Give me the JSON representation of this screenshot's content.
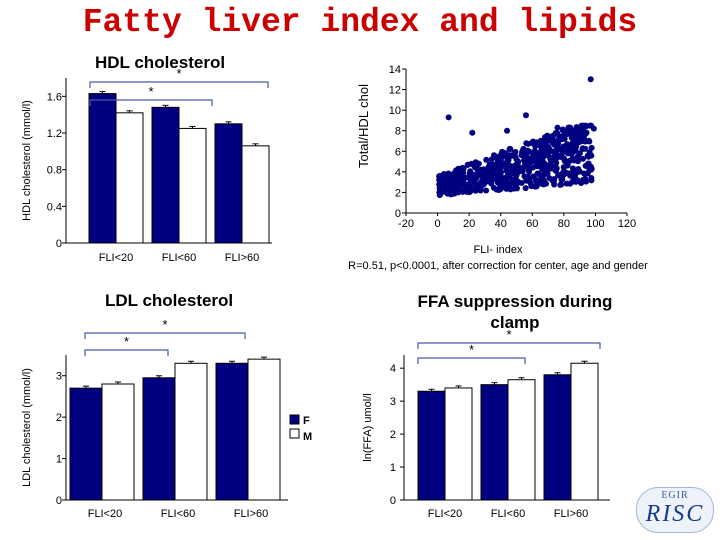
{
  "page_title": "Fatty liver index and lipids",
  "logo": {
    "line1": "EGIR",
    "line2": "RISC"
  },
  "legend": {
    "female": "F",
    "male": "M"
  },
  "chart_data": [
    {
      "id": "hdl",
      "type": "bar",
      "title": "HDL cholesterol",
      "ylabel": "HDL cholesterol (mmol/l)",
      "xlabel": "",
      "ylim": [
        0,
        1.8
      ],
      "yticks": [
        "0",
        "0.4",
        "0.8",
        "1.2",
        "1.6"
      ],
      "categories": [
        "FLI<20",
        "FLI<60",
        "FLI>60"
      ],
      "series": [
        {
          "name": "F",
          "color": "#000080",
          "values": [
            1.63,
            1.48,
            1.3
          ]
        },
        {
          "name": "M",
          "color": "#ffffff",
          "values": [
            1.42,
            1.25,
            1.06
          ]
        }
      ],
      "annotations": [
        "*",
        "*"
      ]
    },
    {
      "id": "scatter",
      "type": "scatter",
      "title": "",
      "ylabel": "Total/HDL chol",
      "xlabel": "FLI- index",
      "caption": "R=0.51, p<0.0001, after correction for center, age and gender",
      "xlim": [
        -20,
        120
      ],
      "ylim": [
        0,
        14
      ],
      "xticks": [
        "-20",
        "0",
        "20",
        "40",
        "60",
        "80",
        "100",
        "120"
      ],
      "yticks": [
        "0",
        "2",
        "4",
        "6",
        "8",
        "10",
        "12",
        "14"
      ],
      "outliers": [
        [
          97,
          13
        ],
        [
          7,
          9.3
        ],
        [
          56,
          9.5
        ],
        [
          84,
          8.3
        ],
        [
          76,
          8.3
        ],
        [
          99,
          8.2
        ],
        [
          22,
          7.8
        ],
        [
          44,
          8.0
        ]
      ],
      "point_color": "#000080"
    },
    {
      "id": "ldl",
      "type": "bar",
      "title": "LDL cholesterol",
      "ylabel": "LDL cholesterol (mmol/l)",
      "xlabel": "",
      "ylim": [
        0,
        3.5
      ],
      "yticks": [
        "0",
        "1",
        "2",
        "3"
      ],
      "categories": [
        "FLI<20",
        "FLI<60",
        "FLI>60"
      ],
      "series": [
        {
          "name": "F",
          "color": "#000080",
          "values": [
            2.7,
            2.95,
            3.3
          ]
        },
        {
          "name": "M",
          "color": "#ffffff",
          "values": [
            2.8,
            3.3,
            3.4
          ]
        }
      ],
      "annotations": [
        "*",
        "*"
      ]
    },
    {
      "id": "ffa",
      "type": "bar",
      "title": "FFA suppression during clamp",
      "title_lines": [
        "FFA suppression during",
        "clamp"
      ],
      "ylabel": "ln(FFA) umol/l",
      "xlabel": "",
      "ylim": [
        0,
        4.4
      ],
      "yticks": [
        "0",
        "1",
        "2",
        "3",
        "4"
      ],
      "categories": [
        "FLI<20",
        "FLI<60",
        "FLI>60"
      ],
      "series": [
        {
          "name": "F",
          "color": "#000080",
          "values": [
            3.3,
            3.5,
            3.8
          ]
        },
        {
          "name": "M",
          "color": "#ffffff",
          "values": [
            3.4,
            3.65,
            4.15
          ]
        }
      ],
      "annotations": [
        "*",
        "*"
      ]
    }
  ]
}
